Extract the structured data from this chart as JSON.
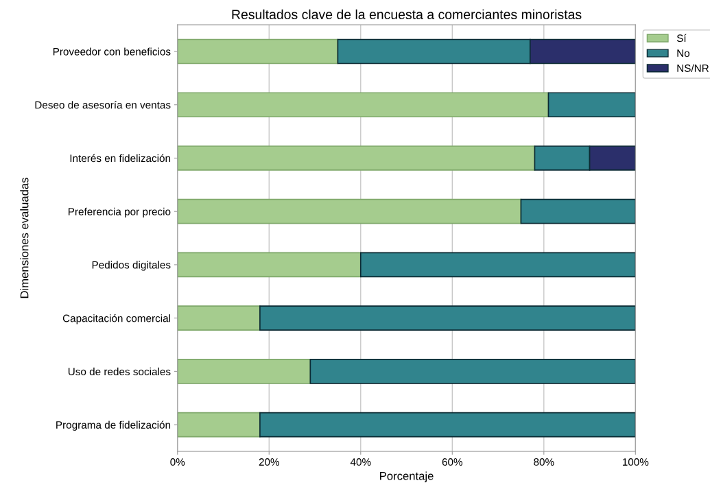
{
  "chart_data": {
    "type": "bar",
    "orientation": "horizontal",
    "stacked": true,
    "title": "Resultados clave de la encuesta a comerciantes minoristas",
    "xlabel": "Porcentaje",
    "ylabel": "Dimensiones evaluadas",
    "categories": [
      "Proveedor con beneficios",
      "Deseo de asesoría en ventas",
      "Interés en fidelización",
      "Preferencia por precio",
      "Pedidos digitales",
      "Capacitación comercial",
      "Uso de redes sociales",
      "Programa de fidelización"
    ],
    "series": [
      {
        "name": "Sí",
        "color": "#a5cc8e",
        "values": [
          35,
          81,
          78,
          75,
          40,
          18,
          29,
          18
        ]
      },
      {
        "name": "No",
        "color": "#31848d",
        "values": [
          42,
          19,
          12,
          25,
          60,
          82,
          71,
          82
        ]
      },
      {
        "name": "NS/NR",
        "color": "#2b2f6b",
        "values": [
          23,
          0,
          10,
          0,
          0,
          0,
          0,
          0
        ]
      }
    ],
    "xlim": [
      0,
      100
    ],
    "xticks": [
      {
        "value": 0,
        "label": "0%"
      },
      {
        "value": 20,
        "label": "20%"
      },
      {
        "value": 40,
        "label": "40%"
      },
      {
        "value": 60,
        "label": "60%"
      },
      {
        "value": 80,
        "label": "80%"
      },
      {
        "value": 100,
        "label": "100%"
      }
    ],
    "grid": "x",
    "legend": "top right"
  }
}
